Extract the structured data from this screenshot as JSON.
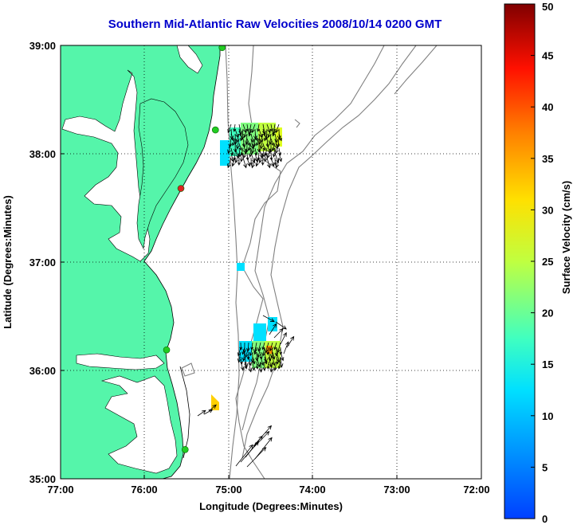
{
  "title": "Southern Mid-Atlantic Raw Velocities 2008/10/14 0200 GMT",
  "axes": {
    "xlabel": "Longitude (Degrees:Minutes)",
    "ylabel": "Latitude (Degrees:Minutes)",
    "xticks": [
      "77:00",
      "76:00",
      "75:00",
      "74:00",
      "73:00",
      "72:00"
    ],
    "yticks": [
      "39:00",
      "38:00",
      "37:00",
      "36:00",
      "35:00"
    ],
    "xlim": [
      -77,
      -72
    ],
    "ylim": [
      35,
      39
    ],
    "grid": "dotted"
  },
  "colorbar": {
    "label": "Surface Velocity (cm/s)",
    "ticks": [
      "0",
      "5",
      "10",
      "15",
      "20",
      "25",
      "30",
      "35",
      "40",
      "45",
      "50"
    ],
    "range": [
      0,
      50
    ],
    "colormap": "jet",
    "placement": "right"
  },
  "colors": {
    "land": "#55f5aa",
    "contour": "#808080",
    "title": "#0000cc",
    "station_active": "#22cc22",
    "station_alert": "#dd2222"
  },
  "stations": [
    {
      "lon": -75.08,
      "lat": 38.98,
      "status": "active"
    },
    {
      "lon": -75.16,
      "lat": 38.22,
      "status": "active"
    },
    {
      "lon": -75.57,
      "lat": 37.68,
      "status": "alert"
    },
    {
      "lon": -75.74,
      "lat": 36.19,
      "status": "active"
    },
    {
      "lon": -75.52,
      "lat": 35.27,
      "status": "active"
    }
  ],
  "velocity_regions": [
    {
      "name": "north",
      "lon": [
        -75.12,
        -74.32
      ],
      "lat": [
        37.85,
        38.28
      ],
      "typical_speed": 22
    },
    {
      "name": "south",
      "lon": [
        -74.88,
        -74.35
      ],
      "lat": [
        36.03,
        36.55
      ],
      "typical_speed": 20
    },
    {
      "name": "nearshore",
      "lon": [
        -75.21,
        -75.12
      ],
      "lat": [
        35.64,
        35.78
      ],
      "typical_speed": 32
    }
  ]
}
